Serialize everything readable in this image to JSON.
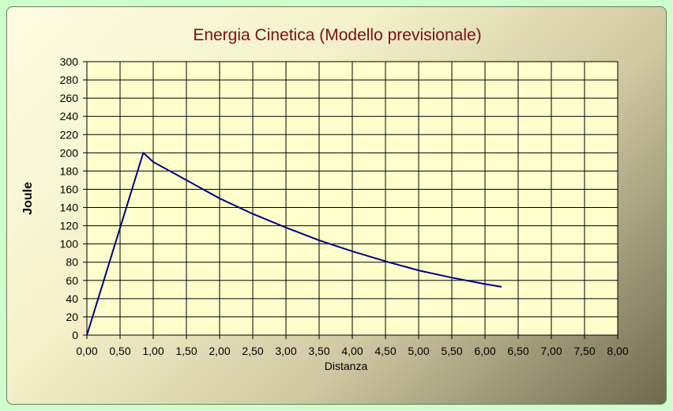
{
  "chart_data": {
    "type": "line",
    "title": "Energia Cinetica (Modello previsionale)",
    "xlabel": "Distanza",
    "ylabel": "Joule",
    "xlim": [
      0,
      8
    ],
    "ylim": [
      0,
      300
    ],
    "x_ticks": [
      "0,00",
      "0,50",
      "1,00",
      "1,50",
      "2,00",
      "2,50",
      "3,00",
      "3,50",
      "4,00",
      "4,50",
      "5,00",
      "5,50",
      "6,00",
      "6,50",
      "7,00",
      "7,50",
      "8,00"
    ],
    "y_ticks": [
      "0",
      "20",
      "40",
      "60",
      "80",
      "100",
      "120",
      "140",
      "160",
      "180",
      "200",
      "220",
      "240",
      "260",
      "280",
      "300"
    ],
    "grid": true,
    "legend": "none",
    "colors": {
      "line": "#000080",
      "plot_bg": "#ffffcc",
      "grid": "#000000",
      "title": "#7a1010"
    },
    "series": [
      {
        "x": [
          0.0,
          0.85,
          1.0,
          1.5,
          2.0,
          2.5,
          3.0,
          3.5,
          4.0,
          4.5,
          5.0,
          5.5,
          6.0,
          6.25
        ],
        "y": [
          0,
          200,
          190,
          170,
          150,
          133,
          118,
          104,
          92,
          81,
          71,
          63,
          56,
          53
        ]
      }
    ]
  }
}
